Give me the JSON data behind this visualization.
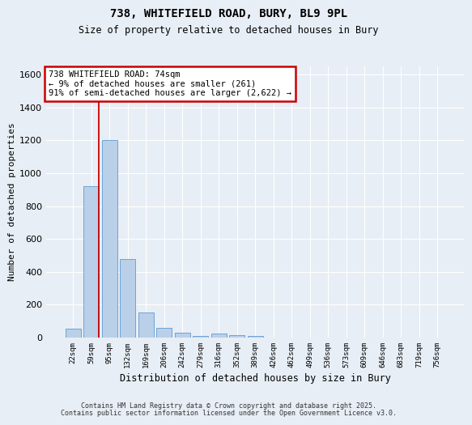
{
  "title_line1": "738, WHITEFIELD ROAD, BURY, BL9 9PL",
  "title_line2": "Size of property relative to detached houses in Bury",
  "xlabel": "Distribution of detached houses by size in Bury",
  "ylabel": "Number of detached properties",
  "categories": [
    "22sqm",
    "59sqm",
    "95sqm",
    "132sqm",
    "169sqm",
    "206sqm",
    "242sqm",
    "279sqm",
    "316sqm",
    "352sqm",
    "389sqm",
    "426sqm",
    "462sqm",
    "499sqm",
    "536sqm",
    "573sqm",
    "609sqm",
    "646sqm",
    "683sqm",
    "719sqm",
    "756sqm"
  ],
  "bar_values": [
    55,
    920,
    1200,
    480,
    155,
    60,
    28,
    10,
    25,
    15,
    10,
    0,
    0,
    0,
    0,
    0,
    0,
    0,
    0,
    0,
    0
  ],
  "bar_color": "#bad0e8",
  "bar_edgecolor": "#5b9bd5",
  "annotation_text": "738 WHITEFIELD ROAD: 74sqm\n← 9% of detached houses are smaller (261)\n91% of semi-detached houses are larger (2,622) →",
  "annotation_box_color": "#ffffff",
  "annotation_box_edgecolor": "#cc0000",
  "vline_color": "#cc0000",
  "vline_x": 1.43,
  "ylim": [
    0,
    1650
  ],
  "yticks": [
    0,
    200,
    400,
    600,
    800,
    1000,
    1200,
    1400,
    1600
  ],
  "plot_bg": "#e8eef5",
  "fig_bg": "#e8eef5",
  "grid_color": "#ffffff",
  "footer_line1": "Contains HM Land Registry data © Crown copyright and database right 2025.",
  "footer_line2": "Contains public sector information licensed under the Open Government Licence v3.0."
}
